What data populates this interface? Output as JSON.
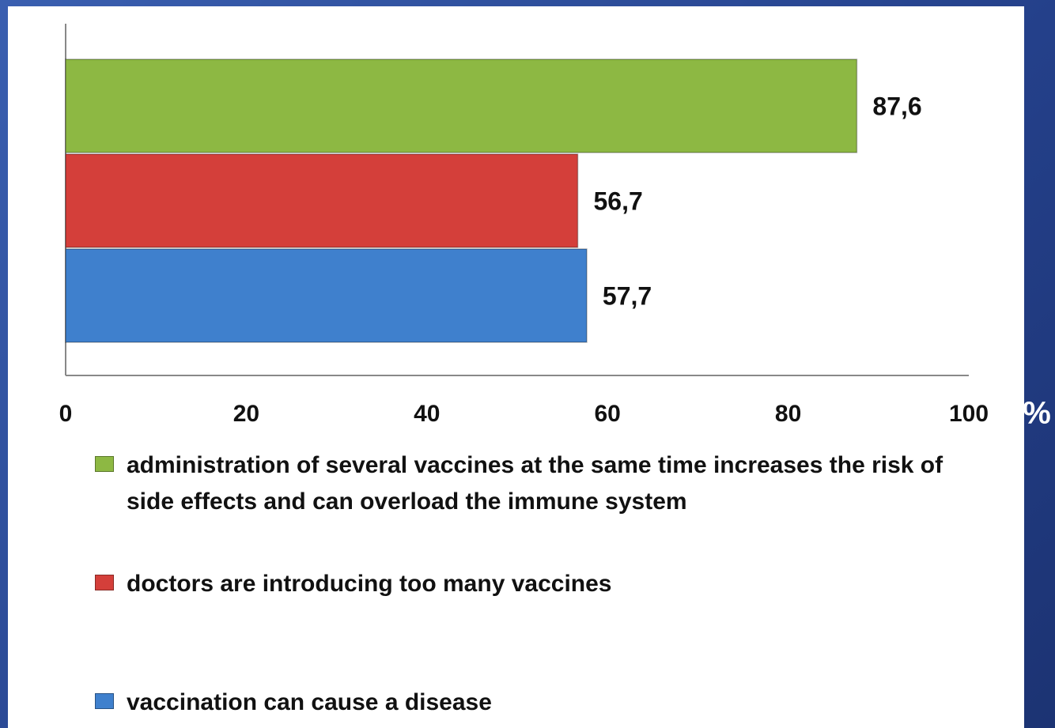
{
  "chart_data": {
    "type": "bar",
    "orientation": "horizontal",
    "categories": [
      null
    ],
    "series": [
      {
        "name": "administration of several vaccines at the same time increases the risk of side effects and can overload the immune system",
        "color": "#8db843",
        "values": [
          87.6
        ],
        "value_labels": [
          "87,6"
        ]
      },
      {
        "name": "doctors are introducing too many vaccines",
        "color": "#d43f3a",
        "values": [
          56.7
        ],
        "value_labels": [
          "56,7"
        ]
      },
      {
        "name": "vaccination can cause a disease",
        "color": "#3f80cd",
        "values": [
          57.7
        ],
        "value_labels": [
          "57,7"
        ]
      }
    ],
    "x_label": "%",
    "xlim": [
      0,
      100
    ],
    "xticks": [
      0,
      20,
      40,
      60,
      80,
      100
    ],
    "grid": false
  }
}
